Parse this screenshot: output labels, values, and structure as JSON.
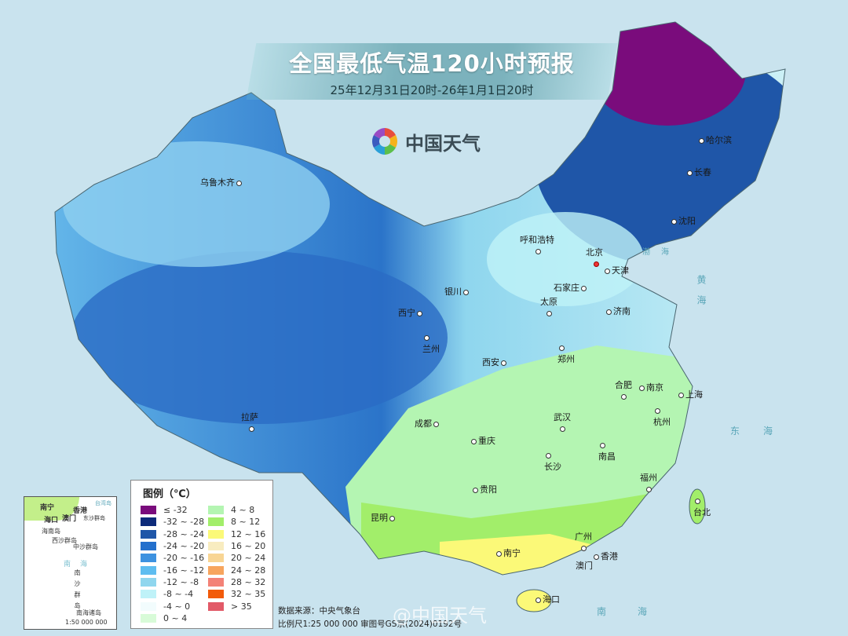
{
  "header": {
    "title": "全国最低气温120小时预报",
    "subtitle": "25年12月31日20时-26年1月1日20时",
    "logo_text": "中国天气",
    "logo_icon": "pinwheel-icon"
  },
  "cities": [
    {
      "name": "乌鲁木齐"
    },
    {
      "name": "哈尔滨"
    },
    {
      "name": "长春"
    },
    {
      "name": "沈阳"
    },
    {
      "name": "呼和浩特"
    },
    {
      "name": "北京",
      "capital": true
    },
    {
      "name": "天津"
    },
    {
      "name": "石家庄"
    },
    {
      "name": "银川"
    },
    {
      "name": "太原"
    },
    {
      "name": "济南"
    },
    {
      "name": "西宁"
    },
    {
      "name": "兰州"
    },
    {
      "name": "郑州"
    },
    {
      "name": "西安"
    },
    {
      "name": "合肥"
    },
    {
      "name": "南京"
    },
    {
      "name": "上海"
    },
    {
      "name": "拉萨"
    },
    {
      "name": "成都"
    },
    {
      "name": "武汉"
    },
    {
      "name": "杭州"
    },
    {
      "name": "重庆"
    },
    {
      "name": "长沙"
    },
    {
      "name": "南昌"
    },
    {
      "name": "贵阳"
    },
    {
      "name": "福州"
    },
    {
      "name": "台北"
    },
    {
      "name": "昆明"
    },
    {
      "name": "南宁"
    },
    {
      "name": "广州"
    },
    {
      "name": "香港"
    },
    {
      "name": "澳门"
    },
    {
      "name": "海口"
    }
  ],
  "seas": [
    "渤海",
    "黄海",
    "东海",
    "南海"
  ],
  "legend": {
    "title": "图例（℃）",
    "items": [
      {
        "label": "≤ -32",
        "color": "#7a0c7c"
      },
      {
        "label": "-32 ~ -28",
        "color": "#0d2b7a"
      },
      {
        "label": "-28 ~ -24",
        "color": "#1f56a8"
      },
      {
        "label": "-24 ~ -20",
        "color": "#2470cc"
      },
      {
        "label": "-20 ~ -16",
        "color": "#3d92e0"
      },
      {
        "label": "-16 ~ -12",
        "color": "#5ebdf0"
      },
      {
        "label": "-12 ~ -8",
        "color": "#8fd6ee"
      },
      {
        "label": "-8 ~ -4",
        "color": "#bff2f8"
      },
      {
        "label": "-4 ~ 0",
        "color": "#f2fcfd"
      },
      {
        "label": "0 ~ 4",
        "color": "#d8fbd8"
      },
      {
        "label": "4 ~ 8",
        "color": "#b4f5b2"
      },
      {
        "label": "8 ~ 12",
        "color": "#a2ee6a"
      },
      {
        "label": "12 ~ 16",
        "color": "#fbf978"
      },
      {
        "label": "16 ~ 20",
        "color": "#f8ecc0"
      },
      {
        "label": "20 ~ 24",
        "color": "#f8d594"
      },
      {
        "label": "24 ~ 28",
        "color": "#f7a55e"
      },
      {
        "label": "28 ~ 32",
        "color": "#f38277"
      },
      {
        "label": "32 ~ 35",
        "color": "#f25b0a"
      },
      {
        "label": "> 35",
        "color": "#e25a68"
      }
    ]
  },
  "inset": {
    "labels": [
      "南宁",
      "海口",
      "澳门",
      "香港",
      "东沙群岛",
      "海南岛",
      "西沙群岛",
      "中沙群岛",
      "南海",
      "南沙群岛",
      "台湾岛"
    ],
    "title": "南海诸岛",
    "scale": "1:50 000 000"
  },
  "footer": {
    "source": "数据来源：中央气象台",
    "scale": "比例尺1:25 000 000   审图号GS京(2024)0192号",
    "watermark": "@中国天气"
  }
}
